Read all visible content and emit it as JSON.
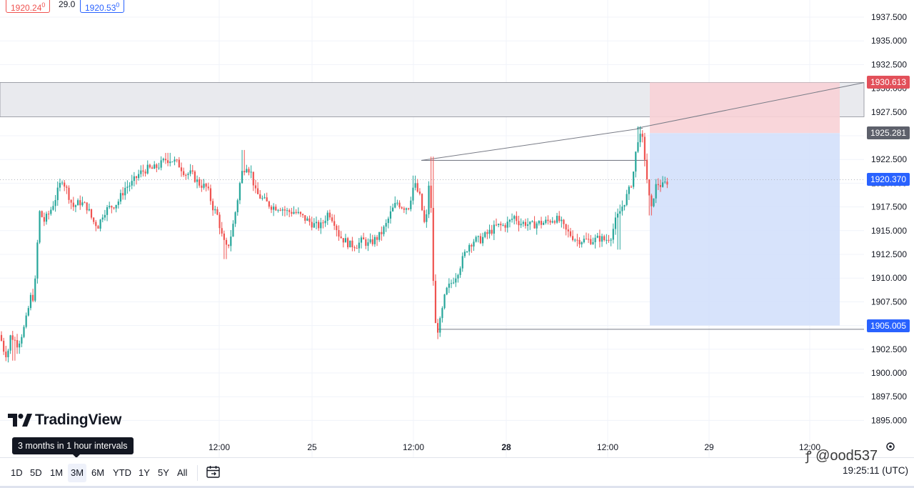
{
  "header": {
    "bid": "1920.24",
    "bid_sup": "0",
    "spread": "29.0",
    "ask": "1920.53",
    "ask_sup": "0"
  },
  "chart_data": {
    "type": "candlestick",
    "title": "",
    "xlabel": "",
    "ylabel": "",
    "ylim": [
      1893.5,
      1939.0
    ],
    "y_ticks": [
      "1937.500",
      "1935.000",
      "1932.500",
      "1930.000",
      "1927.500",
      "1925.000",
      "1922.500",
      "1920.000",
      "1917.500",
      "1915.000",
      "1912.500",
      "1910.000",
      "1907.500",
      "1905.000",
      "1902.500",
      "1900.000",
      "1897.500",
      "1895.000"
    ],
    "x_ticks": [
      "12:00",
      "25",
      "12:00",
      "28",
      "12:00",
      "29",
      "12:00"
    ],
    "bold_x_ticks": [
      "28"
    ],
    "anchors": [
      [
        0,
        1904
      ],
      [
        5,
        1902.5
      ],
      [
        10,
        1901.8
      ],
      [
        15,
        1904
      ],
      [
        25,
        1903
      ],
      [
        35,
        1905
      ],
      [
        43,
        1908
      ],
      [
        48,
        1908
      ],
      [
        55,
        1917
      ],
      [
        62,
        1916
      ],
      [
        70,
        1917
      ],
      [
        78,
        1918.5
      ],
      [
        87,
        1920.5
      ],
      [
        95,
        1919
      ],
      [
        102,
        1917.5
      ],
      [
        112,
        1918
      ],
      [
        122,
        1917.5
      ],
      [
        130,
        1916
      ],
      [
        138,
        1915.5
      ],
      [
        145,
        1917
      ],
      [
        155,
        1917.5
      ],
      [
        165,
        1918
      ],
      [
        175,
        1919.5
      ],
      [
        185,
        1920
      ],
      [
        195,
        1921
      ],
      [
        205,
        1921.5
      ],
      [
        215,
        1921.5
      ],
      [
        225,
        1922
      ],
      [
        232,
        1922.5
      ],
      [
        240,
        1922.5
      ],
      [
        250,
        1922
      ],
      [
        260,
        1921
      ],
      [
        268,
        1921
      ],
      [
        278,
        1920
      ],
      [
        290,
        1919.5
      ],
      [
        298,
        1917.5
      ],
      [
        305,
        1916.5
      ],
      [
        312,
        1914
      ],
      [
        318,
        1913
      ],
      [
        325,
        1915
      ],
      [
        332,
        1918
      ],
      [
        338,
        1921
      ],
      [
        345,
        1922
      ],
      [
        352,
        1921
      ],
      [
        358,
        1919
      ],
      [
        365,
        1918.5
      ],
      [
        372,
        1918
      ],
      [
        382,
        1917.5
      ],
      [
        392,
        1917.5
      ],
      [
        402,
        1917
      ],
      [
        412,
        1917
      ],
      [
        422,
        1916.5
      ],
      [
        432,
        1916
      ],
      [
        442,
        1915.5
      ],
      [
        450,
        1915.5
      ],
      [
        460,
        1917
      ],
      [
        468,
        1916
      ],
      [
        475,
        1914.5
      ],
      [
        482,
        1914
      ],
      [
        490,
        1913.5
      ],
      [
        500,
        1913.5
      ],
      [
        508,
        1914
      ],
      [
        516,
        1913.5
      ],
      [
        524,
        1914
      ],
      [
        532,
        1914.5
      ],
      [
        540,
        1915.5
      ],
      [
        548,
        1917
      ],
      [
        556,
        1918
      ],
      [
        564,
        1917.5
      ],
      [
        572,
        1917.5
      ],
      [
        580,
        1920
      ],
      [
        588,
        1918.5
      ],
      [
        596,
        1915
      ],
      [
        602,
        1921.5
      ],
      [
        606,
        1911
      ],
      [
        610,
        1905
      ],
      [
        614,
        1904.5
      ],
      [
        618,
        1906
      ],
      [
        624,
        1908.5
      ],
      [
        632,
        1909.5
      ],
      [
        640,
        1910.5
      ],
      [
        648,
        1912
      ],
      [
        656,
        1913.5
      ],
      [
        664,
        1914
      ],
      [
        672,
        1914
      ],
      [
        680,
        1914.5
      ],
      [
        688,
        1915
      ],
      [
        696,
        1915.5
      ],
      [
        704,
        1915.5
      ],
      [
        712,
        1915.8
      ],
      [
        720,
        1916.5
      ],
      [
        728,
        1915.8
      ],
      [
        736,
        1915.8
      ],
      [
        744,
        1915.5
      ],
      [
        752,
        1915.8
      ],
      [
        760,
        1915.8
      ],
      [
        768,
        1916
      ],
      [
        776,
        1916.3
      ],
      [
        784,
        1916
      ],
      [
        792,
        1915
      ],
      [
        800,
        1914.5
      ],
      [
        808,
        1914
      ],
      [
        816,
        1914
      ],
      [
        824,
        1914
      ],
      [
        832,
        1914
      ],
      [
        840,
        1914.2
      ],
      [
        848,
        1914
      ],
      [
        856,
        1914.5
      ],
      [
        862,
        1916
      ],
      [
        868,
        1917
      ],
      [
        874,
        1918
      ],
      [
        880,
        1919
      ],
      [
        886,
        1920.5
      ],
      [
        890,
        1923
      ],
      [
        894,
        1925
      ],
      [
        900,
        1924.5
      ],
      [
        904,
        1922
      ],
      [
        908,
        1919
      ],
      [
        912,
        1917
      ],
      [
        916,
        1919
      ],
      [
        920,
        1920
      ],
      [
        928,
        1919.7
      ],
      [
        936,
        1920.3
      ]
    ],
    "highs": [
      [
        340,
        1923.5
      ],
      [
        605,
        1922.8
      ],
      [
        894,
        1926
      ],
      [
        238,
        1923.2
      ],
      [
        580,
        1920.8
      ]
    ],
    "lows": [
      [
        18,
        1901.3
      ],
      [
        314,
        1912
      ],
      [
        616,
        1903.8
      ],
      [
        866,
        1913
      ],
      [
        912,
        1916.6
      ]
    ],
    "position": {
      "stop": "1930.613",
      "entry": "1925.281",
      "target": "1905.005",
      "current": "1920.370"
    },
    "zone": {
      "top": 1930.613,
      "bottom": 1927.0
    },
    "trendline": {
      "start_time": 892,
      "start": 1925.8,
      "end": 1930.6
    },
    "horizontal_lines": [
      {
        "start_time": 590,
        "end_time": 905,
        "price": 1922.4
      },
      {
        "start_time": 613,
        "end_time": 1210,
        "price": 1904.6
      }
    ],
    "trendline2": {
      "start_time": 590,
      "start": 1922.4,
      "end_time": 900,
      "end": 1925.8
    },
    "colors": {
      "up": "#26a69a",
      "down": "#ef5350",
      "stop_zone": "#f8d1d6",
      "target_zone": "#d3e0fb",
      "grey_zone": "#e9eaee",
      "stop_badge": "#e2505a",
      "entry_badge": "#5d606b",
      "price_badge": "#2962ff"
    }
  },
  "branding": {
    "logo_text": "TradingView"
  },
  "tooltip": {
    "text": "3 months in 1 hour intervals"
  },
  "bottom_bar": {
    "ranges": [
      "1D",
      "5D",
      "1M",
      "3M",
      "6M",
      "YTD",
      "1Y",
      "5Y",
      "All"
    ],
    "active_range": "3M",
    "clock": "19:25:11 (UTC)"
  },
  "watermark": {
    "text": "@ood537"
  }
}
